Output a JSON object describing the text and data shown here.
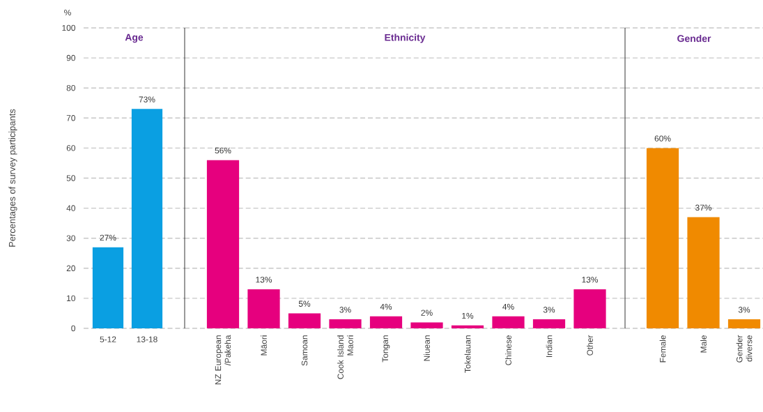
{
  "chart_data": [
    {
      "type": "bar",
      "title": "Age",
      "ylabel": "Percentages of survey participants",
      "annotations": [
        "%"
      ],
      "categories": [
        "5-12",
        "13-18"
      ],
      "values": [
        27,
        73
      ],
      "value_labels": [
        "27%",
        "73%"
      ],
      "color": "#0a9fe2",
      "ylim": [
        0,
        100
      ],
      "yticks": [
        0,
        10,
        20,
        30,
        40,
        50,
        60,
        70,
        80,
        90,
        100
      ],
      "grid": "y"
    },
    {
      "type": "bar",
      "title": "Ethnicity",
      "categories": [
        "NZ European /Pakeha",
        "Māori",
        "Samoan",
        "Cook Island Maori",
        "Tongan",
        "Niuean",
        "Tokelauan",
        "Chinese",
        "Indian",
        "Other"
      ],
      "values": [
        56,
        13,
        5,
        3,
        4,
        2,
        1,
        4,
        3,
        13
      ],
      "value_labels": [
        "56%",
        "13%",
        "5%",
        "3%",
        "4%",
        "2%",
        "1%",
        "4%",
        "3%",
        "13%"
      ],
      "color": "#e6007e",
      "ylim": [
        0,
        100
      ],
      "yticks": [
        0,
        10,
        20,
        30,
        40,
        50,
        60,
        70,
        80,
        90,
        100
      ],
      "grid": "y",
      "tick_labels": "x"
    },
    {
      "type": "bar",
      "title": "Gender",
      "categories": [
        "Female",
        "Male",
        "Gender diverse"
      ],
      "values": [
        60,
        37,
        3
      ],
      "value_labels": [
        "60%",
        "37%",
        "3%"
      ],
      "color": "#f08a00",
      "ylim": [
        0,
        100
      ],
      "yticks": [
        0,
        10,
        20,
        30,
        40,
        50,
        60,
        70,
        80,
        90,
        100
      ],
      "grid": "y",
      "tick_labels": "x"
    }
  ]
}
